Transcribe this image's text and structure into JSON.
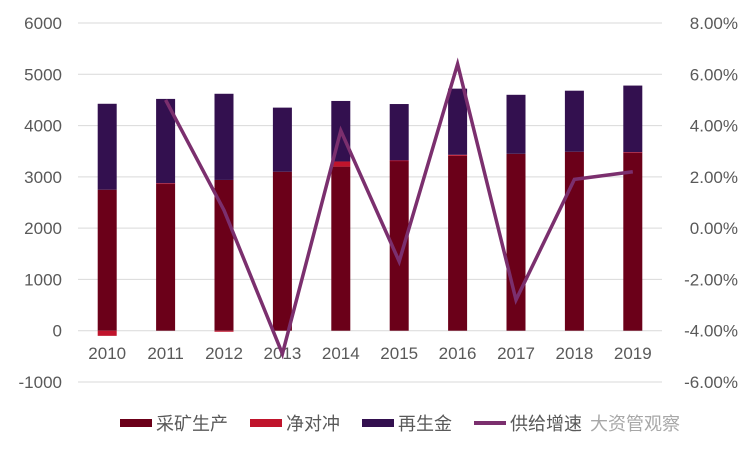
{
  "chart_data": {
    "type": "bar",
    "stacked": true,
    "categories": [
      "2010",
      "2011",
      "2012",
      "2013",
      "2014",
      "2015",
      "2016",
      "2017",
      "2018",
      "2019"
    ],
    "series": [
      {
        "name": "采矿生产",
        "type": "bar",
        "axis": "left",
        "color": "#6b0019",
        "values": [
          2750,
          2865,
          2940,
          3100,
          3200,
          3310,
          3410,
          3450,
          3490,
          3470
        ]
      },
      {
        "name": "净对冲",
        "type": "bar",
        "axis": "left",
        "color": "#c0142c",
        "values": [
          -100,
          10,
          -20,
          0,
          100,
          10,
          20,
          0,
          0,
          10
        ]
      },
      {
        "name": "再生金",
        "type": "bar",
        "axis": "left",
        "color": "#33104f",
        "values": [
          1675,
          1645,
          1680,
          1250,
          1180,
          1100,
          1290,
          1150,
          1190,
          1300
        ]
      },
      {
        "name": "供给增速",
        "type": "line",
        "axis": "right",
        "color": "#7b2f6e",
        "values": [
          null,
          5.0,
          0.7,
          -4.9,
          3.8,
          -1.3,
          6.4,
          -2.8,
          1.9,
          2.2
        ]
      }
    ],
    "ylim": [
      -1000,
      6000
    ],
    "yticks": [
      "6000",
      "5000",
      "4000",
      "3000",
      "2000",
      "1000",
      "0",
      "-1000"
    ],
    "y2lim": [
      -6,
      8
    ],
    "y2ticks": [
      "8.00%",
      "6.00%",
      "4.00%",
      "2.00%",
      "0.00%",
      "-2.00%",
      "-4.00%",
      "-6.00%"
    ],
    "grid": true,
    "legend_position": "bottom",
    "title": "",
    "xlabel": "",
    "ylabel": ""
  },
  "watermark": "大资管观察"
}
